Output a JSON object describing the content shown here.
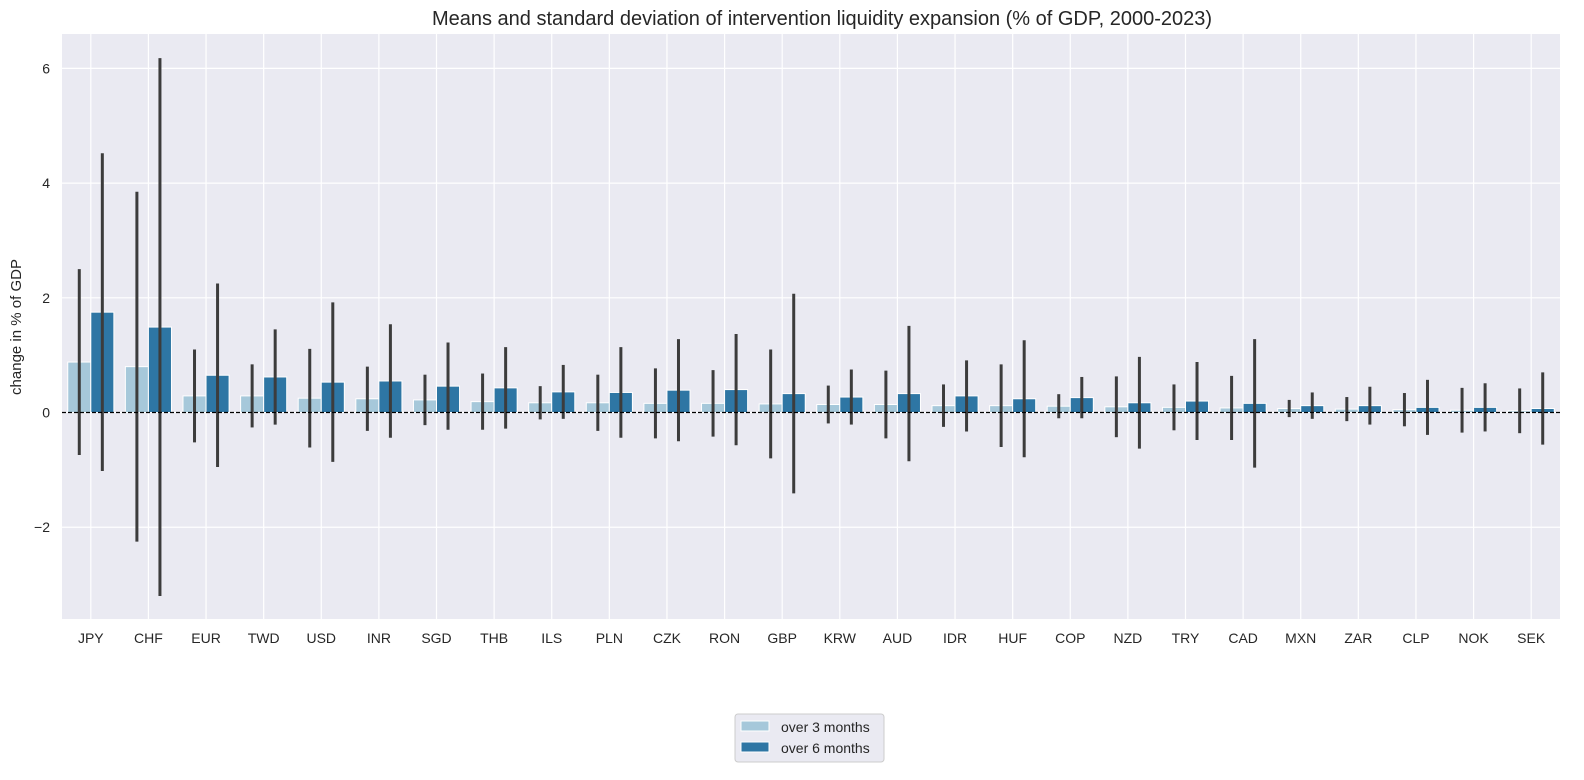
{
  "chart_data": {
    "type": "bar",
    "title": "Means and standard deviation of intervention liquidity expansion (% of GDP, 2000-2023)",
    "xlabel": "",
    "ylabel": "change in % of GDP",
    "ylim": [
      -3.6,
      6.6
    ],
    "yticks": [
      -2,
      0,
      2,
      4,
      6
    ],
    "ytick_labels": [
      "−2",
      "0",
      "2",
      "4",
      "6"
    ],
    "categories": [
      "JPY",
      "CHF",
      "EUR",
      "TWD",
      "USD",
      "INR",
      "SGD",
      "THB",
      "ILS",
      "PLN",
      "CZK",
      "RON",
      "GBP",
      "KRW",
      "AUD",
      "IDR",
      "HUF",
      "COP",
      "NZD",
      "TRY",
      "CAD",
      "MXN",
      "ZAR",
      "CLP",
      "NOK",
      "SEK"
    ],
    "series": [
      {
        "name": "over 3 months",
        "color": "#a6c8da",
        "values": [
          0.88,
          0.8,
          0.29,
          0.29,
          0.25,
          0.24,
          0.22,
          0.19,
          0.17,
          0.17,
          0.16,
          0.16,
          0.15,
          0.14,
          0.14,
          0.12,
          0.12,
          0.11,
          0.1,
          0.09,
          0.08,
          0.07,
          0.06,
          0.05,
          0.04,
          0.03
        ],
        "errors": [
          1.62,
          3.05,
          0.81,
          0.55,
          0.86,
          0.56,
          0.44,
          0.49,
          0.29,
          0.49,
          0.61,
          0.58,
          0.95,
          0.33,
          0.59,
          0.37,
          0.72,
          0.21,
          0.53,
          0.4,
          0.56,
          0.15,
          0.21,
          0.29,
          0.39,
          0.39
        ]
      },
      {
        "name": "over 6 months",
        "color": "#2e76a4",
        "values": [
          1.75,
          1.49,
          0.65,
          0.62,
          0.53,
          0.55,
          0.46,
          0.43,
          0.36,
          0.35,
          0.39,
          0.4,
          0.33,
          0.27,
          0.33,
          0.29,
          0.24,
          0.26,
          0.17,
          0.2,
          0.16,
          0.12,
          0.12,
          0.09,
          0.09,
          0.07
        ],
        "errors": [
          2.77,
          4.69,
          1.6,
          0.83,
          1.39,
          0.99,
          0.76,
          0.71,
          0.47,
          0.79,
          0.89,
          0.97,
          1.74,
          0.48,
          1.18,
          0.62,
          1.02,
          0.36,
          0.8,
          0.68,
          1.12,
          0.23,
          0.33,
          0.48,
          0.42,
          0.63
        ]
      }
    ],
    "reference_line": 0,
    "legend": {
      "position": "bottom-center",
      "entries": [
        "over 3 months",
        "over 6 months"
      ]
    },
    "grid": true
  },
  "colors": {
    "plot_background": "#eaeaf2",
    "grid": "#ffffff",
    "error_bar": "#3c3c3c",
    "text": "#262626"
  }
}
